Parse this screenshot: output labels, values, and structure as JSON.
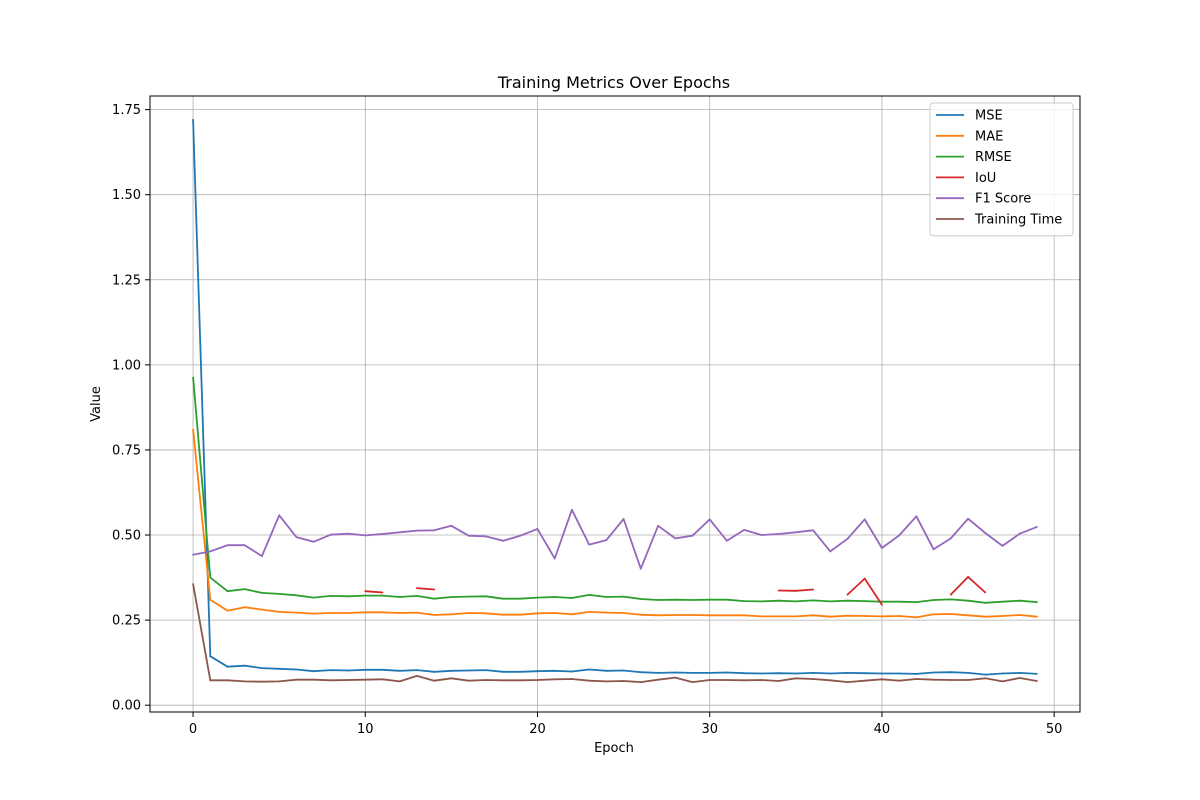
{
  "chart_data": {
    "type": "line",
    "title": "Training Metrics Over Epochs",
    "xlabel": "Epoch",
    "ylabel": "Value",
    "xlim": [
      -2.5,
      51.5
    ],
    "ylim": [
      -0.02,
      1.79
    ],
    "x_ticks": [
      0,
      10,
      20,
      30,
      40,
      50
    ],
    "x_tick_labels": [
      "0",
      "10",
      "20",
      "30",
      "40",
      "50"
    ],
    "y_ticks": [
      0.0,
      0.25,
      0.5,
      0.75,
      1.0,
      1.25,
      1.5,
      1.75
    ],
    "y_tick_labels": [
      "0.00",
      "0.25",
      "0.50",
      "0.75",
      "1.00",
      "1.25",
      "1.50",
      "1.75"
    ],
    "grid": true,
    "legend_position": "top-right",
    "x": [
      0,
      1,
      2,
      3,
      4,
      5,
      6,
      7,
      8,
      9,
      10,
      11,
      12,
      13,
      14,
      15,
      16,
      17,
      18,
      19,
      20,
      21,
      22,
      23,
      24,
      25,
      26,
      27,
      28,
      29,
      30,
      31,
      32,
      33,
      34,
      35,
      36,
      37,
      38,
      39,
      40,
      41,
      42,
      43,
      44,
      45,
      46,
      47,
      48,
      49
    ],
    "series": [
      {
        "name": "MSE",
        "color": "#1f77b4",
        "values": [
          1.72,
          0.144,
          0.113,
          0.116,
          0.109,
          0.107,
          0.105,
          0.1,
          0.103,
          0.102,
          0.104,
          0.104,
          0.101,
          0.103,
          0.098,
          0.101,
          0.102,
          0.103,
          0.098,
          0.098,
          0.1,
          0.101,
          0.099,
          0.105,
          0.101,
          0.102,
          0.097,
          0.095,
          0.096,
          0.095,
          0.095,
          0.096,
          0.094,
          0.093,
          0.094,
          0.093,
          0.095,
          0.093,
          0.095,
          0.094,
          0.093,
          0.093,
          0.092,
          0.096,
          0.097,
          0.095,
          0.09,
          0.093,
          0.095,
          0.092
        ]
      },
      {
        "name": "MAE",
        "color": "#ff7f0e",
        "values": [
          0.81,
          0.31,
          0.278,
          0.288,
          0.281,
          0.274,
          0.272,
          0.269,
          0.271,
          0.271,
          0.273,
          0.273,
          0.271,
          0.272,
          0.265,
          0.267,
          0.271,
          0.27,
          0.266,
          0.266,
          0.27,
          0.271,
          0.267,
          0.274,
          0.272,
          0.271,
          0.266,
          0.264,
          0.265,
          0.265,
          0.264,
          0.264,
          0.264,
          0.261,
          0.261,
          0.261,
          0.264,
          0.26,
          0.263,
          0.262,
          0.261,
          0.262,
          0.258,
          0.267,
          0.268,
          0.264,
          0.26,
          0.262,
          0.265,
          0.26
        ]
      },
      {
        "name": "RMSE",
        "color": "#2ca02c",
        "values": [
          0.963,
          0.375,
          0.335,
          0.341,
          0.33,
          0.327,
          0.323,
          0.316,
          0.321,
          0.32,
          0.322,
          0.322,
          0.318,
          0.321,
          0.313,
          0.318,
          0.319,
          0.32,
          0.313,
          0.313,
          0.316,
          0.318,
          0.315,
          0.324,
          0.318,
          0.319,
          0.312,
          0.309,
          0.31,
          0.309,
          0.31,
          0.31,
          0.306,
          0.305,
          0.307,
          0.305,
          0.308,
          0.305,
          0.307,
          0.306,
          0.304,
          0.304,
          0.303,
          0.309,
          0.311,
          0.307,
          0.301,
          0.304,
          0.307,
          0.303
        ]
      },
      {
        "name": "IoU",
        "color": "#d62728",
        "values": [
          null,
          null,
          null,
          null,
          null,
          null,
          null,
          null,
          null,
          null,
          0.335,
          0.331,
          null,
          0.344,
          0.34,
          null,
          null,
          null,
          null,
          null,
          null,
          null,
          null,
          null,
          null,
          null,
          null,
          null,
          null,
          null,
          null,
          null,
          null,
          null,
          0.337,
          0.336,
          0.34,
          null,
          0.325,
          0.372,
          0.295,
          null,
          null,
          null,
          0.325,
          0.377,
          0.331,
          null,
          null,
          null
        ]
      },
      {
        "name": "F1 Score",
        "color": "#9467bd",
        "values": [
          0.442,
          0.452,
          0.47,
          0.47,
          0.438,
          0.558,
          0.494,
          0.48,
          0.501,
          0.504,
          0.499,
          0.503,
          0.508,
          0.513,
          0.514,
          0.527,
          0.498,
          0.496,
          0.483,
          0.498,
          0.518,
          0.431,
          0.574,
          0.472,
          0.485,
          0.547,
          0.401,
          0.527,
          0.49,
          0.498,
          0.546,
          0.483,
          0.515,
          0.5,
          0.503,
          0.508,
          0.514,
          0.452,
          0.489,
          0.546,
          0.462,
          0.499,
          0.555,
          0.458,
          0.49,
          0.548,
          0.506,
          0.468,
          0.504,
          0.524
        ]
      },
      {
        "name": "Training Time",
        "color": "#8c564b",
        "values": [
          0.356,
          0.073,
          0.073,
          0.07,
          0.069,
          0.07,
          0.075,
          0.075,
          0.073,
          0.074,
          0.075,
          0.076,
          0.07,
          0.086,
          0.072,
          0.079,
          0.072,
          0.074,
          0.073,
          0.073,
          0.074,
          0.076,
          0.077,
          0.072,
          0.07,
          0.071,
          0.068,
          0.075,
          0.081,
          0.068,
          0.074,
          0.074,
          0.073,
          0.074,
          0.071,
          0.079,
          0.077,
          0.073,
          0.068,
          0.072,
          0.076,
          0.072,
          0.077,
          0.075,
          0.074,
          0.074,
          0.079,
          0.07,
          0.08,
          0.071
        ]
      }
    ]
  }
}
